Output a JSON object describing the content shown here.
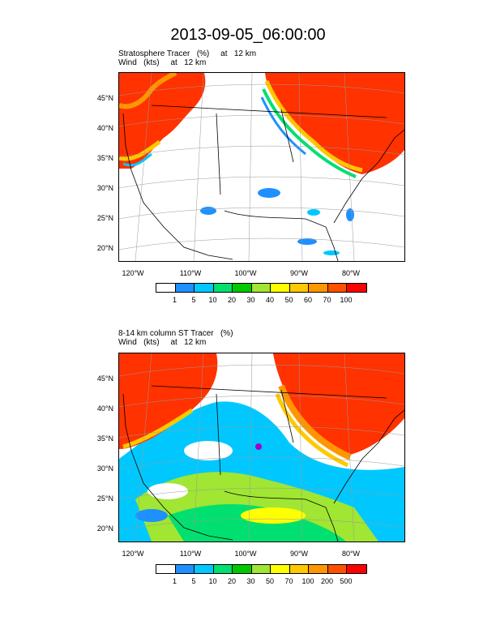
{
  "title": "2013-09-05_06:00:00",
  "panel_top": {
    "subtitle_line1": "Stratosphere Tracer   (%)     at   12 km",
    "subtitle_line2": "Wind   (kts)     at   12 km",
    "lat_labels": [
      "45°N",
      "40°N",
      "35°N",
      "30°N",
      "25°N",
      "20°N"
    ],
    "lon_labels": [
      "120°W",
      "110°W",
      "100°W",
      "90°W",
      "80°W"
    ],
    "colorbar_labels": [
      "1",
      "5",
      "10",
      "20",
      "30",
      "40",
      "50",
      "60",
      "70",
      "100"
    ],
    "colorbar_colors": [
      "#ffffff",
      "#1e90ff",
      "#00c8ff",
      "#00e070",
      "#00c800",
      "#a0e632",
      "#ffff00",
      "#ffc800",
      "#ff9600",
      "#ff5000",
      "#ff0000"
    ]
  },
  "panel_bottom": {
    "subtitle_line1": "8-14 km column ST Tracer   (%)",
    "subtitle_line2": "Wind   (kts)     at   12 km",
    "lat_labels": [
      "45°N",
      "40°N",
      "35°N",
      "30°N",
      "25°N",
      "20°N"
    ],
    "lon_labels": [
      "120°W",
      "110°W",
      "100°W",
      "90°W",
      "80°W"
    ],
    "colorbar_labels": [
      "1",
      "5",
      "10",
      "20",
      "30",
      "50",
      "70",
      "100",
      "200",
      "500"
    ],
    "colorbar_colors": [
      "#ffffff",
      "#1e90ff",
      "#00c8ff",
      "#00e070",
      "#00c800",
      "#a0e632",
      "#ffff00",
      "#ffc800",
      "#ff9600",
      "#ff5000",
      "#ff0000"
    ]
  }
}
